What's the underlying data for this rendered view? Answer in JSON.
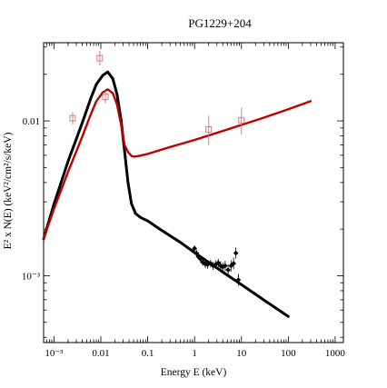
{
  "chart_data": {
    "type": "line",
    "title": "PG1229+204",
    "xlabel": "Energy E (keV)",
    "ylabel": "E² x N(E) (keV²/cm²/s/keV)",
    "xscale": "log",
    "yscale": "log",
    "xlim": [
      0.0006,
      1500
    ],
    "ylim": [
      0.00037,
      0.032
    ],
    "x_ticks": [
      {
        "v": 0.001,
        "label": "10⁻³"
      },
      {
        "v": 0.01,
        "label": "0.01"
      },
      {
        "v": 0.1,
        "label": "0.1"
      },
      {
        "v": 1,
        "label": "1"
      },
      {
        "v": 10,
        "label": "10"
      },
      {
        "v": 100,
        "label": "100"
      },
      {
        "v": 1000,
        "label": "1000"
      }
    ],
    "y_ticks": [
      {
        "v": 0.001,
        "label": "10⁻³"
      },
      {
        "v": 0.01,
        "label": "0.01"
      }
    ],
    "series": [
      {
        "color": "#000000",
        "x": [
          0.0006,
          0.001,
          0.002,
          0.004,
          0.006,
          0.008,
          0.011,
          0.014,
          0.018,
          0.022,
          0.027,
          0.032,
          0.038,
          0.045,
          0.055,
          0.07,
          0.1,
          0.2,
          0.5,
          1,
          2,
          5,
          10,
          30,
          100
        ],
        "y": [
          0.00173,
          0.0029,
          0.0055,
          0.0097,
          0.0138,
          0.0172,
          0.0197,
          0.0207,
          0.0187,
          0.015,
          0.0101,
          0.0064,
          0.004,
          0.00292,
          0.00252,
          0.00238,
          0.00226,
          0.00196,
          0.00164,
          0.00141,
          0.00122,
          0.00101,
          0.000876,
          0.000697,
          0.000545
        ]
      },
      {
        "color": "#c00000",
        "x": [
          0.0006,
          0.001,
          0.002,
          0.004,
          0.006,
          0.008,
          0.011,
          0.014,
          0.018,
          0.022,
          0.027,
          0.032,
          0.038,
          0.045,
          0.05,
          0.06,
          0.1,
          0.3,
          1,
          3,
          10,
          30,
          100,
          300
        ],
        "y": [
          0.00173,
          0.0027,
          0.0047,
          0.0079,
          0.0109,
          0.0134,
          0.0153,
          0.016,
          0.0151,
          0.0128,
          0.0095,
          0.007,
          0.0063,
          0.00594,
          0.00588,
          0.00592,
          0.00612,
          0.00678,
          0.00754,
          0.00837,
          0.00942,
          0.0105,
          0.0119,
          0.0134
        ]
      }
    ],
    "data_points": [
      {
        "color": "#e07a7a",
        "marker": "open-square",
        "x": 0.0025,
        "y": 0.0104,
        "ylo": 0.0095,
        "yhi": 0.0114
      },
      {
        "color": "#e07a7a",
        "marker": "open-square",
        "x": 0.0095,
        "y": 0.0254,
        "ylo": 0.0228,
        "yhi": 0.0283
      },
      {
        "color": "#e07a7a",
        "marker": "open-square",
        "x": 0.0125,
        "y": 0.0143,
        "ylo": 0.013,
        "yhi": 0.0157
      },
      {
        "color": "#e07a7a",
        "marker": "open-square",
        "x": 2,
        "y": 0.0088,
        "ylo": 0.007,
        "yhi": 0.0108
      },
      {
        "color": "#e07a7a",
        "marker": "open-square",
        "x": 10,
        "y": 0.0101,
        "ylo": 0.0082,
        "yhi": 0.0122
      },
      {
        "color": "#000000",
        "marker": "dot",
        "x": 1.0,
        "y": 0.0015,
        "ylo": 0.00143,
        "yhi": 0.00157
      },
      {
        "color": "#000000",
        "marker": "dot",
        "x": 1.1,
        "y": 0.0014,
        "ylo": 0.00133,
        "yhi": 0.00147
      },
      {
        "color": "#000000",
        "marker": "dot",
        "x": 1.2,
        "y": 0.00133,
        "ylo": 0.00127,
        "yhi": 0.0014
      },
      {
        "color": "#000000",
        "marker": "dot",
        "x": 1.35,
        "y": 0.00128,
        "ylo": 0.00121,
        "yhi": 0.00135
      },
      {
        "color": "#000000",
        "marker": "dot",
        "x": 1.5,
        "y": 0.00122,
        "ylo": 0.00116,
        "yhi": 0.00129
      },
      {
        "color": "#000000",
        "marker": "dot",
        "x": 1.7,
        "y": 0.00119,
        "ylo": 0.00112,
        "yhi": 0.00126
      },
      {
        "color": "#000000",
        "marker": "dot",
        "x": 1.9,
        "y": 0.00118,
        "ylo": 0.00111,
        "yhi": 0.00125
      },
      {
        "color": "#000000",
        "marker": "dot",
        "x": 2.2,
        "y": 0.0012,
        "ylo": 0.00113,
        "yhi": 0.00127
      },
      {
        "color": "#000000",
        "marker": "dot",
        "x": 2.5,
        "y": 0.00116,
        "ylo": 0.00109,
        "yhi": 0.00123
      },
      {
        "color": "#000000",
        "marker": "dot",
        "x": 2.8,
        "y": 0.00118,
        "ylo": 0.00111,
        "yhi": 0.00126
      },
      {
        "color": "#000000",
        "marker": "dot",
        "x": 3.2,
        "y": 0.00121,
        "ylo": 0.00113,
        "yhi": 0.00129
      },
      {
        "color": "#000000",
        "marker": "dot",
        "x": 3.6,
        "y": 0.00116,
        "ylo": 0.00108,
        "yhi": 0.00124
      },
      {
        "color": "#000000",
        "marker": "dot",
        "x": 4.0,
        "y": 0.00114,
        "ylo": 0.00106,
        "yhi": 0.00122
      },
      {
        "color": "#000000",
        "marker": "dot",
        "x": 4.5,
        "y": 0.00116,
        "ylo": 0.00107,
        "yhi": 0.00125
      },
      {
        "color": "#000000",
        "marker": "dot",
        "x": 5.2,
        "y": 0.00109,
        "ylo": 0.001,
        "yhi": 0.00118
      },
      {
        "color": "#000000",
        "marker": "dot",
        "x": 6.0,
        "y": 0.00116,
        "ylo": 0.00106,
        "yhi": 0.00126
      },
      {
        "color": "#000000",
        "marker": "dot",
        "x": 6.8,
        "y": 0.0012,
        "ylo": 0.0011,
        "yhi": 0.00131
      },
      {
        "color": "#000000",
        "marker": "dot",
        "x": 7.6,
        "y": 0.0014,
        "ylo": 0.00129,
        "yhi": 0.00152
      },
      {
        "color": "#000000",
        "marker": "dot",
        "x": 8.6,
        "y": 0.00094,
        "ylo": 0.00086,
        "yhi": 0.00103
      }
    ]
  }
}
